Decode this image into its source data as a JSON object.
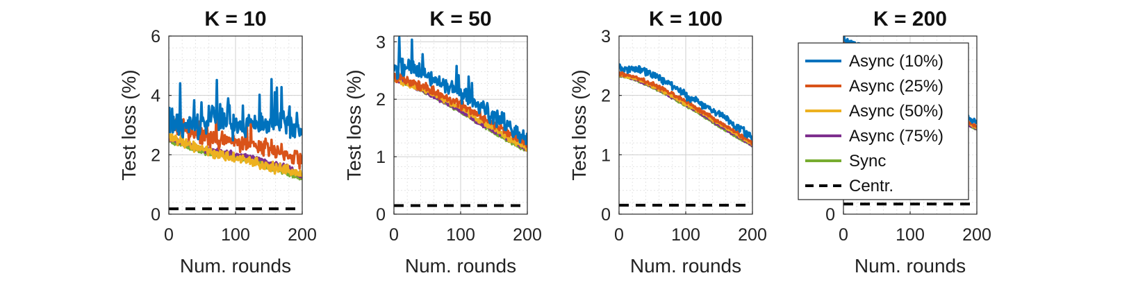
{
  "colors": {
    "Async (10%)": "#0072BD",
    "Async (25%)": "#D95319",
    "Async (50%)": "#EDB120",
    "Async (75%)": "#7E2F8E",
    "Sync": "#77AC30",
    "Centr.": "#000000"
  },
  "legend": {
    "placement": "right, overlapping last panel",
    "entries": [
      {
        "label": "Async (10%)",
        "style": "solid"
      },
      {
        "label": "Async (25%)",
        "style": "solid"
      },
      {
        "label": "Async (50%)",
        "style": "solid"
      },
      {
        "label": "Async (75%)",
        "style": "solid"
      },
      {
        "label": "Sync",
        "style": "solid"
      },
      {
        "label": "Centr.",
        "style": "dashed"
      }
    ]
  },
  "chart_data": [
    {
      "type": "line",
      "title": "K = 10",
      "xlabel": "Num. rounds",
      "ylabel": "Test loss (%)",
      "xlim": [
        0,
        200
      ],
      "ylim": [
        0,
        6
      ],
      "xticks": [
        0,
        100,
        200
      ],
      "yticks": [
        0,
        2,
        4,
        6
      ],
      "grid": true,
      "x": [
        0,
        25,
        50,
        75,
        100,
        125,
        150,
        175,
        200
      ],
      "series": [
        {
          "name": "Async (10%)",
          "values": [
            3.2,
            2.9,
            3.0,
            3.3,
            2.9,
            3.0,
            3.0,
            3.2,
            2.8
          ],
          "noise": 0.55,
          "spike_chance": 0.12,
          "spike": 1.4
        },
        {
          "name": "Async (25%)",
          "values": [
            3.0,
            2.8,
            2.6,
            2.5,
            2.4,
            2.3,
            2.2,
            2.0,
            1.8
          ],
          "noise": 0.35,
          "spike_chance": 0.06,
          "spike": 0.8
        },
        {
          "name": "Async (50%)",
          "values": [
            2.6,
            2.4,
            2.2,
            2.0,
            1.9,
            1.8,
            1.6,
            1.5,
            1.3
          ],
          "noise": 0.22,
          "spike_chance": 0.0,
          "spike": 0.0
        },
        {
          "name": "Async (75%)",
          "values": [
            2.5,
            2.4,
            2.2,
            2.1,
            2.0,
            1.9,
            1.7,
            1.6,
            1.3
          ],
          "noise": 0.12,
          "spike_chance": 0.0,
          "spike": 0.0
        },
        {
          "name": "Sync",
          "values": [
            2.5,
            2.3,
            2.1,
            2.0,
            1.9,
            1.8,
            1.6,
            1.4,
            1.2
          ],
          "noise": 0.1,
          "spike_chance": 0.0,
          "spike": 0.0
        },
        {
          "name": "Centr.",
          "values": [
            0.18,
            0.18,
            0.18,
            0.18,
            0.18,
            0.18,
            0.18,
            0.18,
            0.18
          ],
          "noise": 0.0,
          "spike_chance": 0.0,
          "spike": 0.0
        }
      ]
    },
    {
      "type": "line",
      "title": "K = 50",
      "xlabel": "Num. rounds",
      "ylabel": "Test loss (%)",
      "xlim": [
        0,
        200
      ],
      "ylim": [
        0,
        3.1
      ],
      "xticks": [
        0,
        100,
        200
      ],
      "yticks": [
        0,
        1,
        2,
        3
      ],
      "grid": true,
      "x": [
        0,
        25,
        50,
        75,
        100,
        125,
        150,
        175,
        200
      ],
      "series": [
        {
          "name": "Async (10%)",
          "values": [
            2.5,
            2.6,
            2.4,
            2.3,
            2.1,
            1.9,
            1.7,
            1.5,
            1.3
          ],
          "noise": 0.18,
          "spike_chance": 0.08,
          "spike": 0.45
        },
        {
          "name": "Async (25%)",
          "values": [
            2.4,
            2.3,
            2.2,
            2.05,
            1.9,
            1.75,
            1.55,
            1.4,
            1.25
          ],
          "noise": 0.1,
          "spike_chance": 0.0,
          "spike": 0.0
        },
        {
          "name": "Async (50%)",
          "values": [
            2.35,
            2.25,
            2.15,
            2.0,
            1.85,
            1.65,
            1.5,
            1.3,
            1.15
          ],
          "noise": 0.06,
          "spike_chance": 0.0,
          "spike": 0.0
        },
        {
          "name": "Async (75%)",
          "values": [
            2.35,
            2.25,
            2.1,
            1.95,
            1.8,
            1.6,
            1.45,
            1.28,
            1.12
          ],
          "noise": 0.04,
          "spike_chance": 0.0,
          "spike": 0.0
        },
        {
          "name": "Sync",
          "values": [
            2.35,
            2.25,
            2.1,
            1.95,
            1.78,
            1.6,
            1.42,
            1.25,
            1.1
          ],
          "noise": 0.03,
          "spike_chance": 0.0,
          "spike": 0.0
        },
        {
          "name": "Centr.",
          "values": [
            0.15,
            0.15,
            0.15,
            0.15,
            0.15,
            0.15,
            0.15,
            0.15,
            0.15
          ],
          "noise": 0.0,
          "spike_chance": 0.0,
          "spike": 0.0
        }
      ]
    },
    {
      "type": "line",
      "title": "K = 100",
      "xlabel": "Num. rounds",
      "ylabel": "Test loss (%)",
      "xlim": [
        0,
        200
      ],
      "ylim": [
        0,
        3
      ],
      "xticks": [
        0,
        100,
        200
      ],
      "yticks": [
        0,
        1,
        2,
        3
      ],
      "grid": true,
      "x": [
        0,
        25,
        50,
        75,
        100,
        125,
        150,
        175,
        200
      ],
      "series": [
        {
          "name": "Async (10%)",
          "values": [
            2.45,
            2.45,
            2.35,
            2.2,
            2.0,
            1.85,
            1.7,
            1.5,
            1.3
          ],
          "noise": 0.08,
          "spike_chance": 0.0,
          "spike": 0.0
        },
        {
          "name": "Async (25%)",
          "values": [
            2.38,
            2.3,
            2.2,
            2.05,
            1.9,
            1.72,
            1.55,
            1.38,
            1.2
          ],
          "noise": 0.04,
          "spike_chance": 0.0,
          "spike": 0.0
        },
        {
          "name": "Async (50%)",
          "values": [
            2.35,
            2.28,
            2.16,
            2.02,
            1.86,
            1.7,
            1.52,
            1.35,
            1.18
          ],
          "noise": 0.03,
          "spike_chance": 0.0,
          "spike": 0.0
        },
        {
          "name": "Async (75%)",
          "values": [
            2.35,
            2.27,
            2.15,
            2.0,
            1.85,
            1.68,
            1.5,
            1.33,
            1.16
          ],
          "noise": 0.025,
          "spike_chance": 0.0,
          "spike": 0.0
        },
        {
          "name": "Sync",
          "values": [
            2.34,
            2.26,
            2.14,
            1.99,
            1.83,
            1.66,
            1.48,
            1.31,
            1.15
          ],
          "noise": 0.02,
          "spike_chance": 0.0,
          "spike": 0.0
        },
        {
          "name": "Centr.",
          "values": [
            0.15,
            0.15,
            0.15,
            0.15,
            0.15,
            0.15,
            0.15,
            0.15,
            0.15
          ],
          "noise": 0.0,
          "spike_chance": 0.0,
          "spike": 0.0
        }
      ]
    },
    {
      "type": "line",
      "title": "K = 200",
      "xlabel": "Num. rounds",
      "ylabel": "",
      "xlim": [
        0,
        200
      ],
      "ylim": [
        0,
        3
      ],
      "xticks": [
        0,
        100,
        200
      ],
      "yticks": [
        0
      ],
      "grid": true,
      "x": [
        0,
        25,
        50,
        75,
        100,
        125,
        150,
        175,
        200
      ],
      "series": [
        {
          "name": "Async (10%)",
          "values": [
            2.95,
            2.85,
            2.6,
            2.4,
            2.2,
            2.0,
            1.85,
            1.7,
            1.55
          ],
          "noise": 0.06,
          "spike_chance": 0.0,
          "spike": 0.0
        },
        {
          "name": "Async (25%)",
          "values": [
            2.9,
            2.8,
            2.55,
            2.35,
            2.15,
            1.95,
            1.8,
            1.62,
            1.48
          ],
          "noise": 0.03,
          "spike_chance": 0.0,
          "spike": 0.0
        },
        {
          "name": "Async (50%)",
          "values": [
            2.9,
            2.78,
            2.52,
            2.32,
            2.12,
            1.92,
            1.77,
            1.6,
            1.45
          ],
          "noise": 0.02,
          "spike_chance": 0.0,
          "spike": 0.0
        },
        {
          "name": "Async (75%)",
          "values": [
            2.9,
            2.77,
            2.5,
            2.3,
            2.1,
            1.9,
            1.75,
            1.58,
            1.44
          ],
          "noise": 0.02,
          "spike_chance": 0.0,
          "spike": 0.0
        },
        {
          "name": "Sync",
          "values": [
            2.9,
            2.76,
            2.5,
            2.3,
            2.1,
            1.9,
            1.74,
            1.57,
            1.43
          ],
          "noise": 0.015,
          "spike_chance": 0.0,
          "spike": 0.0
        },
        {
          "name": "Centr.",
          "values": [
            0.17,
            0.17,
            0.17,
            0.17,
            0.17,
            0.17,
            0.17,
            0.17,
            0.17
          ],
          "noise": 0.0,
          "spike_chance": 0.0,
          "spike": 0.0
        }
      ]
    }
  ]
}
